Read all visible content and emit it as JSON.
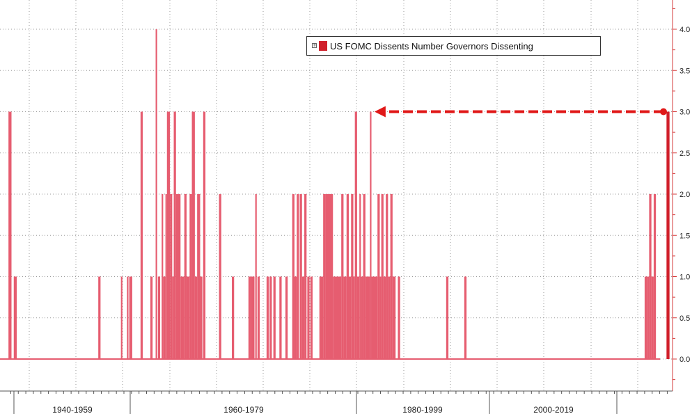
{
  "legend": {
    "label": "US FOMC Dissents Number Governors Dissenting",
    "toggle_icon": "expand-icon"
  },
  "colors": {
    "bar": "#e65d70",
    "highlight_bar": "#d01f2a",
    "annotation": "#e01818",
    "axis": "#d43a3a",
    "grid": "#9a9a9a"
  },
  "chart_data": {
    "type": "bar",
    "ylim": [
      -0.3,
      4.4
    ],
    "yticks": [
      "0.0",
      "0.5",
      "1.0",
      "1.5",
      "2.0",
      "2.5",
      "3.0",
      "3.5",
      "4.0"
    ],
    "xlim": [
      1936.5,
      2024.7
    ],
    "x_period_labels": [
      {
        "label": "1940-1959",
        "start": 1940,
        "end": 1959
      },
      {
        "label": "1960-1979",
        "start": 1960,
        "end": 1979
      },
      {
        "label": "1980-1999",
        "start": 1980,
        "end": 1999
      },
      {
        "label": "2000-2019",
        "start": 2000,
        "end": 2019
      }
    ],
    "grid": true,
    "legend_position": "top-center",
    "series": [
      {
        "name": "US FOMC Dissents Number Governors Dissenting",
        "bars": [
          [
            1936.7,
            1937.1,
            3
          ],
          [
            1937.4,
            1937.8,
            1
          ],
          [
            1948.6,
            1948.9,
            1
          ],
          [
            1951.6,
            1951.8,
            1
          ],
          [
            1952.4,
            1952.6,
            1
          ],
          [
            1952.7,
            1953.1,
            1
          ],
          [
            1954.2,
            1954.5,
            3
          ],
          [
            1955.5,
            1955.8,
            1
          ],
          [
            1956.2,
            1956.4,
            4
          ],
          [
            1956.5,
            1956.8,
            1
          ],
          [
            1957.0,
            1957.2,
            2
          ],
          [
            1957.2,
            1957.5,
            1
          ],
          [
            1957.5,
            1957.7,
            2
          ],
          [
            1957.7,
            1958.1,
            3
          ],
          [
            1958.1,
            1958.4,
            2
          ],
          [
            1958.4,
            1958.6,
            1
          ],
          [
            1958.6,
            1958.9,
            3
          ],
          [
            1958.9,
            1959.5,
            2
          ],
          [
            1959.5,
            1960.0,
            1
          ],
          [
            1960.0,
            1960.3,
            2
          ],
          [
            1960.3,
            1960.7,
            1
          ],
          [
            1960.7,
            1961.0,
            2
          ],
          [
            1961.0,
            1961.4,
            3
          ],
          [
            1961.4,
            1961.7,
            1
          ],
          [
            1961.7,
            1962.1,
            2
          ],
          [
            1962.1,
            1962.4,
            1
          ],
          [
            1962.5,
            1962.8,
            3
          ],
          [
            1964.6,
            1964.9,
            2
          ],
          [
            1966.3,
            1966.6,
            1
          ],
          [
            1968.5,
            1968.8,
            1
          ],
          [
            1968.8,
            1969.3,
            1
          ],
          [
            1969.4,
            1969.6,
            2
          ],
          [
            1969.7,
            1970.0,
            1
          ],
          [
            1970.9,
            1971.2,
            1
          ],
          [
            1971.3,
            1971.6,
            1
          ],
          [
            1971.8,
            1972.1,
            1
          ],
          [
            1972.6,
            1972.9,
            1
          ],
          [
            1973.4,
            1973.7,
            1
          ],
          [
            1974.3,
            1974.6,
            2
          ],
          [
            1974.6,
            1974.9,
            1
          ],
          [
            1974.9,
            1975.2,
            2
          ],
          [
            1975.3,
            1975.6,
            2
          ],
          [
            1975.6,
            1975.9,
            1
          ],
          [
            1975.9,
            1976.2,
            2
          ],
          [
            1976.3,
            1976.6,
            1
          ],
          [
            1976.7,
            1977.0,
            1
          ],
          [
            1977.9,
            1978.4,
            1
          ],
          [
            1978.4,
            1978.7,
            2
          ],
          [
            1978.7,
            1979.7,
            2
          ],
          [
            1979.7,
            1980.8,
            1
          ],
          [
            1980.8,
            1981.1,
            2
          ],
          [
            1981.1,
            1981.5,
            1
          ],
          [
            1981.5,
            1981.8,
            2
          ],
          [
            1981.8,
            1982.1,
            1
          ],
          [
            1982.1,
            1982.4,
            2
          ],
          [
            1982.4,
            1982.6,
            1
          ],
          [
            1982.6,
            1982.9,
            3
          ],
          [
            1982.9,
            1983.2,
            1
          ],
          [
            1983.2,
            1983.4,
            2
          ],
          [
            1983.4,
            1983.7,
            1
          ],
          [
            1983.7,
            1984.0,
            2
          ],
          [
            1984.0,
            1984.6,
            1
          ],
          [
            1984.6,
            1984.8,
            3
          ],
          [
            1984.8,
            1985.6,
            1
          ],
          [
            1985.6,
            1985.9,
            2
          ],
          [
            1985.9,
            1986.1,
            1
          ],
          [
            1986.1,
            1986.4,
            2
          ],
          [
            1986.4,
            1986.7,
            1
          ],
          [
            1986.7,
            1987.0,
            2
          ],
          [
            1987.0,
            1987.3,
            1
          ],
          [
            1987.3,
            1987.6,
            2
          ],
          [
            1987.6,
            1988.0,
            1
          ],
          [
            1988.3,
            1988.6,
            1
          ],
          [
            1994.7,
            1995.0,
            1
          ],
          [
            1997.1,
            1997.4,
            1
          ],
          [
            2021.0,
            2021.3,
            1
          ],
          [
            2021.3,
            2021.6,
            1
          ],
          [
            2021.6,
            2021.9,
            2
          ],
          [
            2021.9,
            2022.2,
            1
          ],
          [
            2022.2,
            2022.5,
            2
          ]
        ],
        "latest": {
          "x_start": 2023.9,
          "x_end": 2024.3,
          "value": 3
        }
      }
    ],
    "annotation": {
      "type": "dashed-arrow",
      "from": {
        "x": 2023.5,
        "y": 3
      },
      "to": {
        "x": 1985.2,
        "y": 3
      }
    }
  }
}
